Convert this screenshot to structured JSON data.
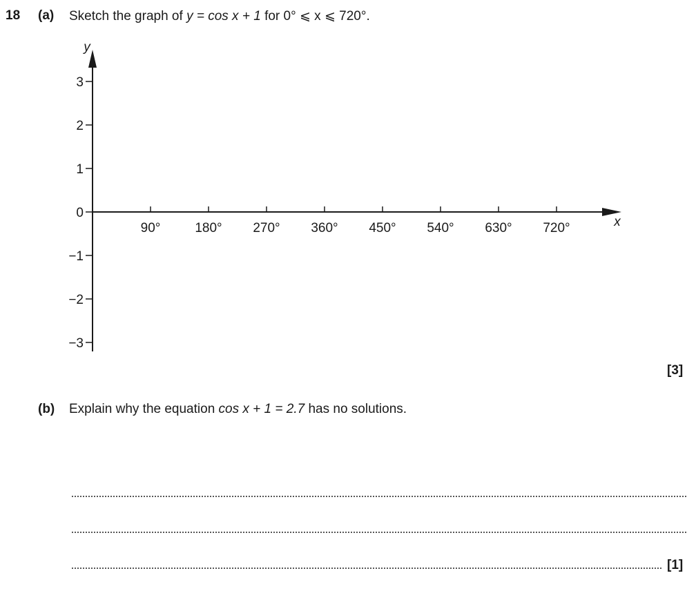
{
  "question": {
    "number": "18",
    "part_a": {
      "label": "(a)",
      "text_before": "Sketch the graph of ",
      "equation": "y = cos x + 1",
      "text_mid": " for ",
      "range": "0° ⩽ x ⩽ 720°",
      "text_end": ".",
      "marks": "[3]"
    },
    "part_b": {
      "label": "(b)",
      "text_before": "Explain why the equation ",
      "equation": "cos x + 1 = 2.7",
      "text_after": " has no solutions.",
      "marks": "[1]"
    }
  },
  "chart_data": {
    "type": "line",
    "title": "",
    "xlabel": "x",
    "ylabel": "y",
    "xlim": [
      0,
      720
    ],
    "ylim": [
      -3,
      3
    ],
    "x_ticks": [
      90,
      180,
      270,
      360,
      450,
      540,
      630,
      720
    ],
    "x_tick_labels": [
      "90°",
      "180°",
      "270°",
      "360°",
      "450°",
      "540°",
      "630°",
      "720°"
    ],
    "y_ticks": [
      3,
      2,
      1,
      0,
      -1,
      -2,
      -3
    ],
    "y_tick_labels": [
      "3",
      "2",
      "1",
      "0",
      "−1",
      "−2",
      "−3"
    ],
    "grid": false,
    "series": []
  }
}
